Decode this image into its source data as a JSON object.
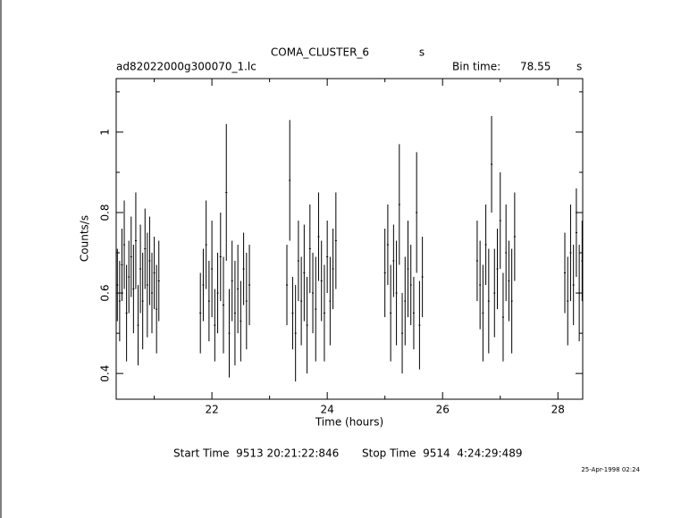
{
  "chart_data": {
    "type": "errorbar",
    "title": "COMA_CLUSTER_6",
    "title_unit": "s",
    "subtitle": "ad82022000g300070_1.lc",
    "bin_time_label": "Bin time:",
    "bin_time": "78.55",
    "bin_time_unit": "s",
    "xlabel": "Time (hours)",
    "ylabel": "Counts/s",
    "start_time": "Start Time  9513 20:21:22:846",
    "stop_time": "Stop Time  9514  4:24:29:489",
    "date": "25-Apr-1998 02:24",
    "color": "#000000",
    "x": [
      20.36,
      20.4,
      20.44,
      20.48,
      20.52,
      20.56,
      20.6,
      20.64,
      20.68,
      20.72,
      20.76,
      20.8,
      20.84,
      20.88,
      20.92,
      20.96,
      21,
      21.04,
      21.08,
      21.8,
      21.85,
      21.9,
      21.95,
      22,
      22.05,
      22.1,
      22.15,
      22.2,
      22.25,
      22.3,
      22.35,
      22.4,
      22.45,
      22.5,
      22.55,
      22.6,
      22.65,
      23.3,
      23.35,
      23.4,
      23.45,
      23.5,
      23.55,
      23.6,
      23.65,
      23.7,
      23.75,
      23.8,
      23.85,
      23.9,
      23.95,
      24,
      24.05,
      24.1,
      24.15,
      25,
      25.05,
      25.1,
      25.15,
      25.2,
      25.25,
      25.3,
      25.35,
      25.4,
      25.45,
      25.5,
      25.55,
      25.6,
      25.65,
      26.6,
      26.65,
      26.7,
      26.75,
      26.8,
      26.85,
      26.9,
      26.95,
      27,
      27.05,
      27.1,
      27.15,
      27.2,
      27.25,
      28.12,
      28.17,
      28.22,
      28.27,
      28.32,
      28.37,
      28.42
    ],
    "values": [
      0.62,
      0.58,
      0.67,
      0.72,
      0.55,
      0.64,
      0.69,
      0.61,
      0.73,
      0.52,
      0.66,
      0.58,
      0.71,
      0.62,
      0.68,
      0.6,
      0.65,
      0.56,
      0.63,
      0.55,
      0.62,
      0.72,
      0.58,
      0.66,
      0.52,
      0.6,
      0.69,
      0.57,
      0.85,
      0.5,
      0.63,
      0.55,
      0.61,
      0.53,
      0.66,
      0.58,
      0.62,
      0.62,
      0.88,
      0.55,
      0.5,
      0.68,
      0.58,
      0.65,
      0.52,
      0.71,
      0.6,
      0.56,
      0.74,
      0.63,
      0.55,
      0.69,
      0.58,
      0.66,
      0.73,
      0.65,
      0.72,
      0.55,
      0.68,
      0.6,
      0.82,
      0.5,
      0.58,
      0.66,
      0.62,
      0.55,
      0.8,
      0.52,
      0.64,
      0.68,
      0.62,
      0.55,
      0.72,
      0.58,
      0.92,
      0.6,
      0.66,
      0.78,
      0.54,
      0.7,
      0.63,
      0.58,
      0.74,
      0.65,
      0.58,
      0.7,
      0.62,
      0.75,
      0.6,
      0.68
    ],
    "errors": [
      0.09,
      0.1,
      0.09,
      0.11,
      0.12,
      0.09,
      0.1,
      0.11,
      0.12,
      0.1,
      0.11,
      0.12,
      0.1,
      0.13,
      0.11,
      0.1,
      0.09,
      0.11,
      0.1,
      0.1,
      0.09,
      0.11,
      0.1,
      0.12,
      0.09,
      0.1,
      0.11,
      0.12,
      0.17,
      0.11,
      0.1,
      0.13,
      0.11,
      0.1,
      0.09,
      0.12,
      0.1,
      0.1,
      0.15,
      0.09,
      0.12,
      0.1,
      0.11,
      0.12,
      0.12,
      0.11,
      0.1,
      0.13,
      0.11,
      0.1,
      0.12,
      0.09,
      0.11,
      0.1,
      0.12,
      0.11,
      0.1,
      0.12,
      0.09,
      0.13,
      0.15,
      0.1,
      0.11,
      0.12,
      0.1,
      0.09,
      0.15,
      0.11,
      0.1,
      0.1,
      0.11,
      0.12,
      0.1,
      0.13,
      0.12,
      0.11,
      0.1,
      0.12,
      0.11,
      0.12,
      0.1,
      0.13,
      0.11,
      0.1,
      0.11,
      0.12,
      0.1,
      0.11,
      0.12,
      0.1
    ],
    "xlim": [
      20.34,
      28.43
    ],
    "ylim": [
      0.336,
      1.133
    ],
    "xticks": [
      22,
      24,
      26,
      28
    ],
    "yticks": [
      0.4,
      0.6,
      0.8,
      1
    ],
    "xminor": [
      21,
      23,
      25,
      27
    ],
    "yminor": [
      0.5,
      0.7,
      0.9,
      1.1
    ]
  }
}
